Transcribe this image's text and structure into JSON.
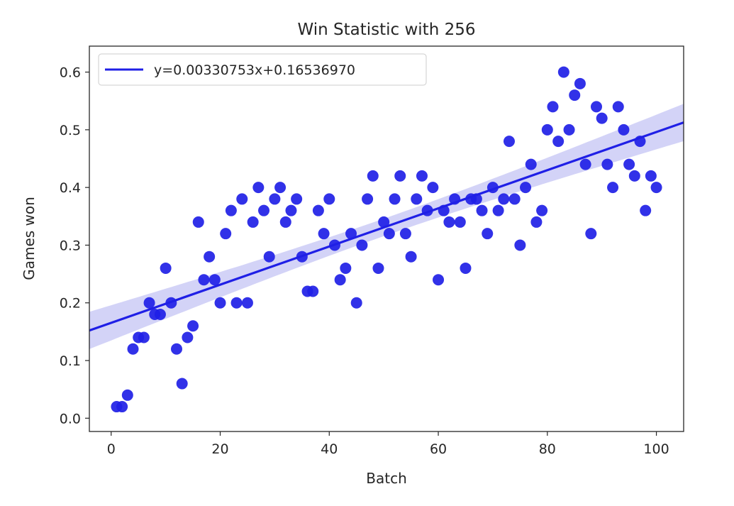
{
  "chart_data": {
    "type": "scatter",
    "title": "Win Statistic with 256",
    "xlabel": "Batch",
    "ylabel": "Games won",
    "xlim": [
      -4,
      105
    ],
    "ylim": [
      -0.023,
      0.645
    ],
    "xticks": [
      0,
      20,
      40,
      60,
      80,
      100
    ],
    "yticks": [
      0.0,
      0.1,
      0.2,
      0.3,
      0.4,
      0.5,
      0.6
    ],
    "grid": false,
    "legend_position": "top-left",
    "colors": {
      "points": "#1f1fe6",
      "line": "#1f1fe6",
      "band": "#c8c8f5",
      "axes": "#262626"
    },
    "series": [
      {
        "type": "scatter",
        "x": [
          1,
          2,
          3,
          4,
          5,
          6,
          7,
          8,
          9,
          10,
          11,
          12,
          13,
          14,
          15,
          16,
          17,
          18,
          19,
          20,
          21,
          22,
          23,
          24,
          25,
          26,
          27,
          28,
          29,
          30,
          31,
          32,
          33,
          34,
          35,
          36,
          37,
          38,
          39,
          40,
          41,
          42,
          43,
          44,
          45,
          46,
          47,
          48,
          49,
          50,
          51,
          52,
          53,
          54,
          55,
          56,
          57,
          58,
          59,
          60,
          61,
          62,
          63,
          64,
          65,
          66,
          67,
          68,
          69,
          70,
          71,
          72,
          73,
          74,
          75,
          76,
          77,
          78,
          79,
          80,
          81,
          82,
          83,
          84,
          85,
          86,
          87,
          88,
          89,
          90,
          91,
          92,
          93,
          94,
          95,
          96,
          97,
          98,
          99,
          100
        ],
        "y": [
          0.02,
          0.02,
          0.04,
          0.12,
          0.14,
          0.14,
          0.2,
          0.18,
          0.18,
          0.26,
          0.2,
          0.12,
          0.06,
          0.14,
          0.16,
          0.34,
          0.24,
          0.28,
          0.24,
          0.2,
          0.32,
          0.36,
          0.2,
          0.38,
          0.2,
          0.34,
          0.4,
          0.36,
          0.28,
          0.38,
          0.4,
          0.34,
          0.36,
          0.38,
          0.28,
          0.22,
          0.22,
          0.36,
          0.32,
          0.38,
          0.3,
          0.24,
          0.26,
          0.32,
          0.2,
          0.3,
          0.38,
          0.42,
          0.26,
          0.34,
          0.32,
          0.38,
          0.42,
          0.32,
          0.28,
          0.38,
          0.42,
          0.36,
          0.4,
          0.24,
          0.36,
          0.34,
          0.38,
          0.34,
          0.26,
          0.38,
          0.38,
          0.36,
          0.32,
          0.4,
          0.36,
          0.38,
          0.48,
          0.38,
          0.3,
          0.4,
          0.44,
          0.34,
          0.36,
          0.5,
          0.54,
          0.48,
          0.6,
          0.5,
          0.56,
          0.58,
          0.44,
          0.32,
          0.54,
          0.52,
          0.44,
          0.4,
          0.54,
          0.5,
          0.44,
          0.42,
          0.48,
          0.36,
          0.42,
          0.4
        ]
      },
      {
        "type": "line",
        "name": "y=0.00330753x+0.16536970",
        "slope": 0.00330753,
        "intercept": 0.1653697
      }
    ]
  }
}
